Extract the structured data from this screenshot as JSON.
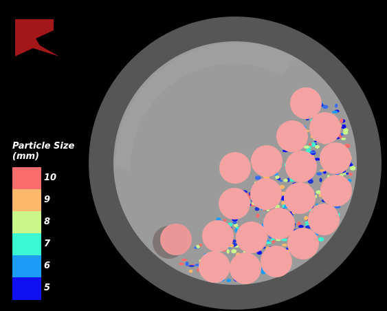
{
  "logo": {
    "name": "brand-logo",
    "color": "#a3161a"
  },
  "legend": {
    "title_line1": "Particle Size",
    "title_line2": "(mm)",
    "entries": [
      {
        "label": "10",
        "color": "#fb6c6c"
      },
      {
        "label": "9",
        "color": "#fdb86c"
      },
      {
        "label": "8",
        "color": "#c9f78a"
      },
      {
        "label": "7",
        "color": "#39f8d2"
      },
      {
        "label": "6",
        "color": "#1b9cf8"
      },
      {
        "label": "5",
        "color": "#1010f3"
      }
    ]
  },
  "colors": {
    "background": "#000000",
    "drum_outer": "#565656",
    "drum_inner": "#9b9b9b",
    "large_particle": "#f3a0a0"
  }
}
